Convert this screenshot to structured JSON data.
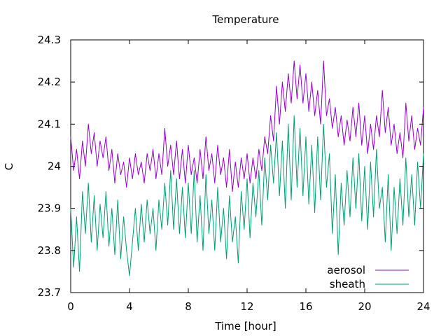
{
  "chart_data": {
    "type": "line",
    "title": "Temperature",
    "xlabel": "Time [hour]",
    "ylabel": "C",
    "xlim": [
      0,
      24
    ],
    "ylim": [
      23.7,
      24.3
    ],
    "grid": false,
    "legend_position": "bottom-right",
    "xticks": [
      0,
      4,
      8,
      12,
      16,
      20,
      24
    ],
    "xtick_labels": [
      "0",
      "4",
      "8",
      "12",
      "16",
      "20",
      "24"
    ],
    "yticks": [
      23.7,
      23.8,
      23.9,
      24.0,
      24.1,
      24.2,
      24.3
    ],
    "ytick_labels": [
      "23.7",
      "23.8",
      "23.9",
      "24",
      "24.1",
      "24.2",
      "24.3"
    ],
    "series": [
      {
        "name": "aerosol",
        "color": "#9400d3",
        "x": [
          0,
          0.2,
          0.4,
          0.6,
          0.8,
          1.0,
          1.2,
          1.4,
          1.6,
          1.8,
          2.0,
          2.2,
          2.4,
          2.6,
          2.8,
          3.0,
          3.2,
          3.4,
          3.6,
          3.8,
          4.0,
          4.2,
          4.4,
          4.6,
          4.8,
          5.0,
          5.2,
          5.4,
          5.6,
          5.8,
          6.0,
          6.2,
          6.4,
          6.6,
          6.8,
          7.0,
          7.2,
          7.4,
          7.6,
          7.8,
          8.0,
          8.2,
          8.4,
          8.6,
          8.8,
          9.0,
          9.2,
          9.4,
          9.6,
          9.8,
          10.0,
          10.2,
          10.4,
          10.6,
          10.8,
          11.0,
          11.2,
          11.4,
          11.6,
          11.8,
          12.0,
          12.2,
          12.4,
          12.6,
          12.8,
          13.0,
          13.2,
          13.4,
          13.6,
          13.8,
          14.0,
          14.2,
          14.4,
          14.6,
          14.8,
          15.0,
          15.2,
          15.4,
          15.6,
          15.8,
          16.0,
          16.2,
          16.4,
          16.6,
          16.8,
          17.0,
          17.2,
          17.4,
          17.6,
          17.8,
          18.0,
          18.2,
          18.4,
          18.6,
          18.8,
          19.0,
          19.2,
          19.4,
          19.6,
          19.8,
          20.0,
          20.2,
          20.4,
          20.6,
          20.8,
          21.0,
          21.2,
          21.4,
          21.6,
          21.8,
          22.0,
          22.2,
          22.4,
          22.6,
          22.8,
          23.0,
          23.2,
          23.4,
          23.6,
          23.8,
          24.0
        ],
        "values": [
          24.07,
          23.99,
          24.04,
          23.97,
          24.06,
          24.0,
          24.1,
          24.03,
          24.08,
          24.0,
          24.06,
          24.02,
          24.07,
          23.99,
          24.04,
          23.96,
          24.03,
          23.98,
          24.01,
          23.95,
          24.02,
          23.97,
          24.03,
          23.98,
          24.01,
          23.96,
          24.03,
          23.99,
          24.04,
          23.97,
          24.03,
          23.98,
          24.09,
          24.0,
          24.05,
          23.98,
          24.06,
          23.97,
          24.04,
          23.96,
          24.05,
          23.98,
          24.02,
          23.96,
          24.04,
          23.97,
          24.07,
          23.99,
          24.03,
          23.96,
          24.05,
          23.98,
          24.02,
          23.95,
          24.04,
          23.94,
          24.01,
          23.95,
          24.02,
          23.97,
          24.03,
          23.96,
          24.02,
          23.97,
          24.04,
          23.99,
          24.07,
          24.03,
          24.12,
          24.06,
          24.19,
          24.1,
          24.2,
          24.13,
          24.22,
          24.15,
          24.25,
          24.16,
          24.24,
          24.15,
          24.22,
          24.13,
          24.2,
          24.12,
          24.18,
          24.1,
          24.25,
          24.12,
          24.16,
          24.09,
          24.14,
          24.07,
          24.12,
          24.05,
          24.11,
          24.06,
          24.14,
          24.07,
          24.15,
          24.05,
          24.12,
          24.03,
          24.1,
          24.04,
          24.12,
          24.07,
          24.18,
          24.08,
          24.14,
          24.05,
          24.1,
          24.03,
          24.08,
          24.02,
          24.15,
          24.06,
          24.12,
          24.04,
          24.09,
          24.05,
          24.14
        ]
      },
      {
        "name": "sheath",
        "color": "#009e73",
        "x": [
          0,
          0.2,
          0.4,
          0.6,
          0.8,
          1.0,
          1.2,
          1.4,
          1.6,
          1.8,
          2.0,
          2.2,
          2.4,
          2.6,
          2.8,
          3.0,
          3.2,
          3.4,
          3.6,
          3.8,
          4.0,
          4.2,
          4.4,
          4.6,
          4.8,
          5.0,
          5.2,
          5.4,
          5.6,
          5.8,
          6.0,
          6.2,
          6.4,
          6.6,
          6.8,
          7.0,
          7.2,
          7.4,
          7.6,
          7.8,
          8.0,
          8.2,
          8.4,
          8.6,
          8.8,
          9.0,
          9.2,
          9.4,
          9.6,
          9.8,
          10.0,
          10.2,
          10.4,
          10.6,
          10.8,
          11.0,
          11.2,
          11.4,
          11.6,
          11.8,
          12.0,
          12.2,
          12.4,
          12.6,
          12.8,
          13.0,
          13.2,
          13.4,
          13.6,
          13.8,
          14.0,
          14.2,
          14.4,
          14.6,
          14.8,
          15.0,
          15.2,
          15.4,
          15.6,
          15.8,
          16.0,
          16.2,
          16.4,
          16.6,
          16.8,
          17.0,
          17.2,
          17.4,
          17.6,
          17.8,
          18.0,
          18.2,
          18.4,
          18.6,
          18.8,
          19.0,
          19.2,
          19.4,
          19.6,
          19.8,
          20.0,
          20.2,
          20.4,
          20.6,
          20.8,
          21.0,
          21.2,
          21.4,
          21.6,
          21.8,
          22.0,
          22.2,
          22.4,
          22.6,
          22.8,
          23.0,
          23.2,
          23.4,
          23.6,
          23.8,
          24.0
        ],
        "values": [
          23.9,
          23.76,
          23.88,
          23.75,
          23.94,
          23.84,
          23.96,
          23.82,
          23.93,
          23.8,
          23.91,
          23.83,
          23.94,
          23.81,
          23.9,
          23.79,
          23.92,
          23.78,
          23.88,
          23.8,
          23.74,
          23.82,
          23.9,
          23.8,
          23.91,
          23.82,
          23.92,
          23.84,
          23.9,
          23.8,
          23.92,
          23.85,
          23.96,
          23.86,
          23.99,
          23.85,
          23.97,
          23.84,
          23.95,
          23.83,
          23.96,
          23.84,
          23.99,
          23.82,
          23.93,
          23.8,
          23.98,
          23.84,
          23.92,
          23.8,
          23.95,
          23.82,
          23.9,
          23.78,
          23.93,
          23.82,
          23.88,
          23.77,
          23.94,
          23.85,
          23.97,
          23.83,
          23.96,
          23.88,
          23.99,
          23.86,
          24.02,
          23.92,
          24.05,
          23.96,
          24.08,
          23.93,
          24.06,
          23.9,
          24.1,
          23.92,
          24.12,
          23.95,
          24.09,
          23.93,
          24.07,
          23.91,
          24.05,
          23.89,
          24.07,
          23.92,
          24.1,
          23.95,
          24.03,
          23.84,
          23.98,
          23.79,
          23.96,
          23.86,
          23.99,
          23.88,
          24.02,
          23.9,
          24.03,
          23.87,
          24.0,
          23.85,
          24.01,
          23.88,
          24.04,
          23.9,
          23.95,
          23.82,
          23.98,
          23.8,
          23.95,
          23.84,
          23.97,
          23.86,
          24.02,
          23.88,
          23.98,
          23.86,
          24.01,
          23.9,
          24.03
        ]
      }
    ]
  }
}
